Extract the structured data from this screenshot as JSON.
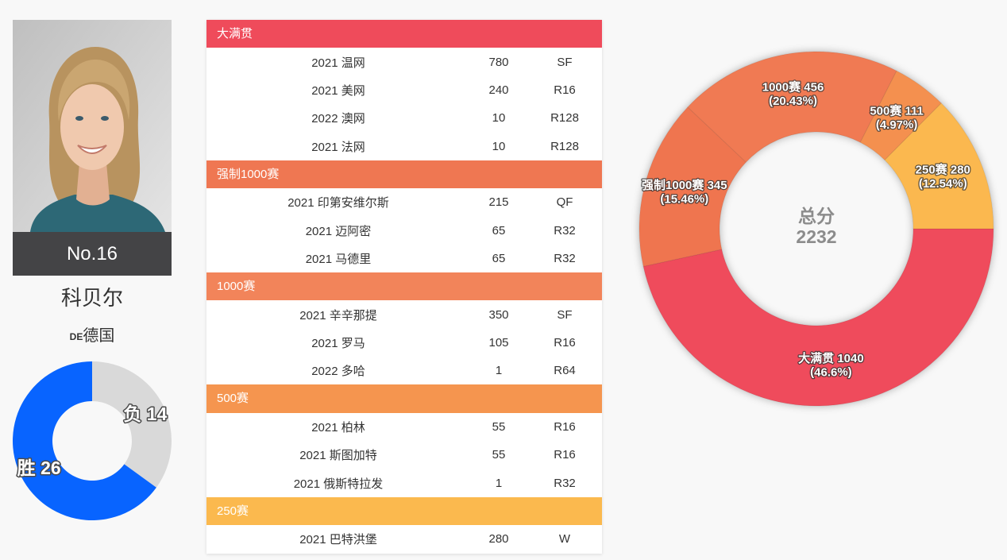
{
  "player": {
    "rank": "No.16",
    "name": "科贝尔",
    "country_code": "DE",
    "country_name": "德国"
  },
  "results": [
    {
      "category": "大满贯",
      "color": "#ef4b5b",
      "rows": [
        {
          "event": "2021 温网",
          "points": 780,
          "round": "SF"
        },
        {
          "event": "2021 美网",
          "points": 240,
          "round": "R16"
        },
        {
          "event": "2022 澳网",
          "points": 10,
          "round": "R128"
        },
        {
          "event": "2021 法网",
          "points": 10,
          "round": "R128"
        }
      ]
    },
    {
      "category": "强制1000赛",
      "color": "#ef7752",
      "rows": [
        {
          "event": "2021 印第安维尔斯",
          "points": 215,
          "round": "QF"
        },
        {
          "event": "2021 迈阿密",
          "points": 65,
          "round": "R32"
        },
        {
          "event": "2021 马德里",
          "points": 65,
          "round": "R32"
        }
      ]
    },
    {
      "category": "1000赛",
      "color": "#f2845a",
      "rows": [
        {
          "event": "2021 辛辛那提",
          "points": 350,
          "round": "SF"
        },
        {
          "event": "2021 罗马",
          "points": 105,
          "round": "R16"
        },
        {
          "event": "2022 多哈",
          "points": 1,
          "round": "R64"
        }
      ]
    },
    {
      "category": "500赛",
      "color": "#f5954f",
      "rows": [
        {
          "event": "2021 柏林",
          "points": 55,
          "round": "R16"
        },
        {
          "event": "2021 斯图加特",
          "points": 55,
          "round": "R16"
        },
        {
          "event": "2021 俄斯特拉发",
          "points": 1,
          "round": "R32"
        }
      ]
    },
    {
      "category": "250赛",
      "color": "#fbb94e",
      "rows": [
        {
          "event": "2021 巴特洪堡",
          "points": 280,
          "round": "W"
        }
      ]
    }
  ],
  "chart_data": [
    {
      "type": "pie",
      "categories": [
        "负",
        "胜"
      ],
      "values": [
        14,
        26
      ],
      "colors": [
        "#d9d9d9",
        "#0864ff"
      ]
    },
    {
      "type": "pie",
      "center_label": "总分",
      "center_value": 2232,
      "categories": [
        "大满贯",
        "强制1000赛",
        "1000赛",
        "500赛",
        "250赛"
      ],
      "values": [
        1040,
        345,
        456,
        111,
        280
      ],
      "percents": [
        46.6,
        15.46,
        20.43,
        4.97,
        12.54
      ],
      "colors": [
        "#ef4b5b",
        "#ef7550",
        "#f07a52",
        "#f4904f",
        "#fbb84f"
      ]
    }
  ]
}
